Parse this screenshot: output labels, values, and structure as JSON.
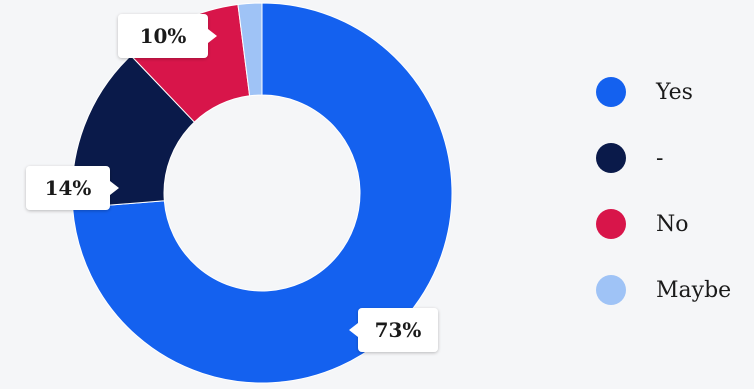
{
  "chart_data": {
    "type": "pie",
    "donut": true,
    "categories": [
      "Yes",
      "-",
      "No",
      "Maybe"
    ],
    "values": [
      73,
      14,
      10,
      2
    ],
    "data_labels": [
      "73%",
      "14%",
      "10%",
      ""
    ],
    "colors": [
      "#1461ef",
      "#0a1a4a",
      "#d8154a",
      "#9fc3f6"
    ],
    "legend": {
      "position": "right",
      "items": [
        "Yes",
        "-",
        "No",
        "Maybe"
      ]
    }
  }
}
